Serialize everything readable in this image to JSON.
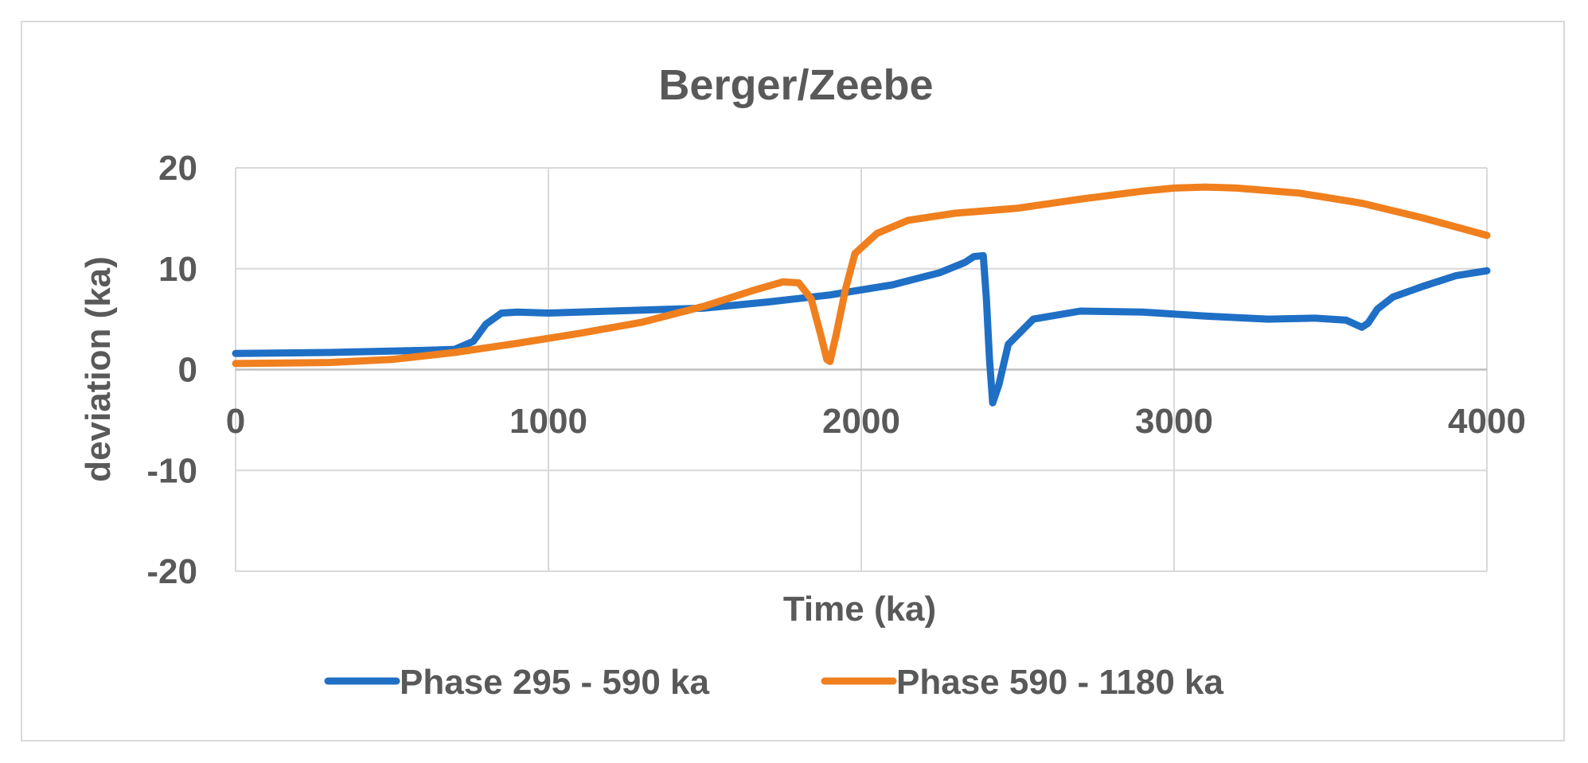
{
  "chart_data": {
    "type": "line",
    "title": "Berger/Zeebe",
    "xlabel": "Time (ka)",
    "ylabel": "deviation (ka)",
    "xlim": [
      0,
      4000
    ],
    "ylim": [
      -20,
      20
    ],
    "x_ticks": [
      "0",
      "1000",
      "2000",
      "3000",
      "4000"
    ],
    "y_ticks": [
      "20",
      "10",
      "0",
      "-10",
      "-20"
    ],
    "grid": true,
    "legend_position": "bottom",
    "series": [
      {
        "name": "Phase 295 - 590 ka",
        "color": "#1f6fc5",
        "x": [
          0,
          300,
          600,
          700,
          760,
          800,
          850,
          900,
          1000,
          1200,
          1500,
          1700,
          1900,
          2100,
          2250,
          2330,
          2360,
          2390,
          2400,
          2410,
          2420,
          2440,
          2470,
          2550,
          2700,
          2900,
          3100,
          3300,
          3450,
          3550,
          3600,
          3620,
          3650,
          3700,
          3800,
          3900,
          4000
        ],
        "y": [
          1.6,
          1.7,
          1.9,
          2.0,
          2.8,
          4.5,
          5.6,
          5.7,
          5.6,
          5.8,
          6.1,
          6.7,
          7.4,
          8.4,
          9.6,
          10.6,
          11.2,
          11.3,
          7.0,
          1.0,
          -3.3,
          -1.5,
          2.5,
          5.0,
          5.8,
          5.7,
          5.3,
          5.0,
          5.1,
          4.9,
          4.2,
          4.6,
          6.0,
          7.2,
          8.3,
          9.3,
          9.8
        ]
      },
      {
        "name": "Phase 590 - 1180 ka",
        "color": "#f07f1e",
        "x": [
          0,
          300,
          500,
          700,
          900,
          1100,
          1300,
          1500,
          1650,
          1750,
          1800,
          1840,
          1870,
          1890,
          1900,
          1920,
          1950,
          1980,
          2050,
          2150,
          2300,
          2500,
          2700,
          2900,
          3000,
          3100,
          3200,
          3400,
          3600,
          3800,
          4000
        ],
        "y": [
          0.6,
          0.7,
          1.0,
          1.7,
          2.6,
          3.6,
          4.7,
          6.3,
          7.8,
          8.7,
          8.6,
          7.0,
          3.5,
          1.0,
          0.8,
          3.5,
          8.0,
          11.5,
          13.5,
          14.8,
          15.5,
          16.0,
          16.9,
          17.7,
          18.0,
          18.1,
          18.0,
          17.5,
          16.5,
          15.0,
          13.3
        ]
      }
    ]
  }
}
